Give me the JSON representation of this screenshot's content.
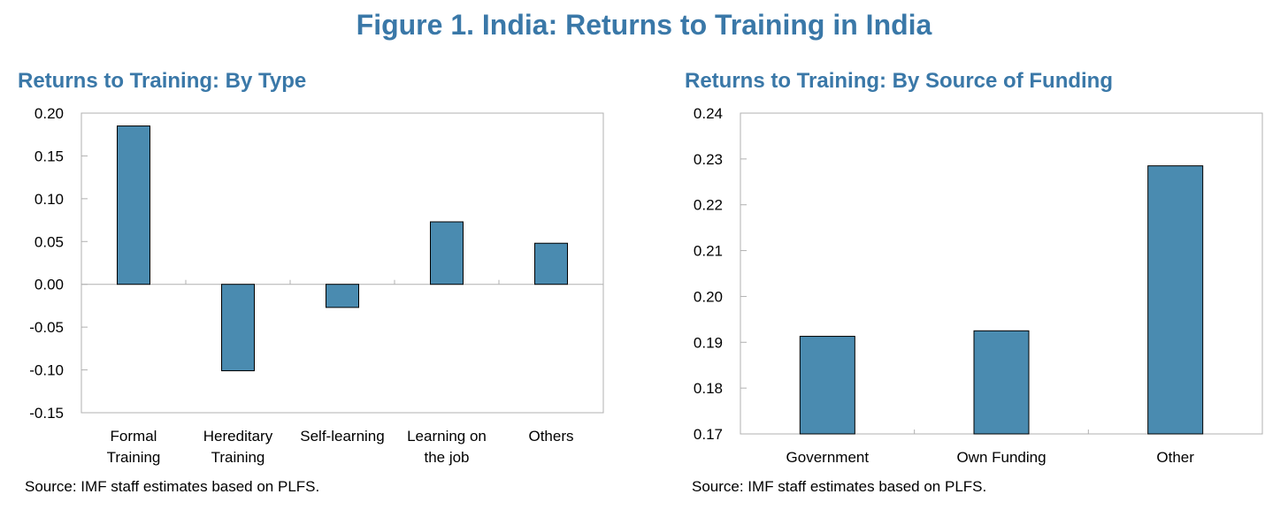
{
  "figure": {
    "title": "Figure 1. India: Returns to Training in India"
  },
  "chart_data": [
    {
      "type": "bar",
      "title": "Returns to Training: By Type",
      "categories": [
        [
          "Formal",
          "Training"
        ],
        [
          "Hereditary",
          "Training"
        ],
        [
          "Self-learning"
        ],
        [
          "Learning on",
          "the job"
        ],
        [
          "Others"
        ]
      ],
      "values": [
        0.185,
        -0.101,
        -0.027,
        0.073,
        0.048
      ],
      "ylim": [
        -0.15,
        0.2
      ],
      "yticks": [
        "0.20",
        "0.15",
        "0.10",
        "0.05",
        "0.00",
        "-0.05",
        "-0.10",
        "-0.15"
      ],
      "ytick_values": [
        0.2,
        0.15,
        0.1,
        0.05,
        0.0,
        -0.05,
        -0.1,
        -0.15
      ],
      "bar_color": "#4a8bb0",
      "source": "Source: IMF staff estimates based on PLFS."
    },
    {
      "type": "bar",
      "title": "Returns to Training: By Source of Funding",
      "categories": [
        [
          "Government"
        ],
        [
          "Own Funding"
        ],
        [
          "Other"
        ]
      ],
      "values": [
        0.1913,
        0.1925,
        0.2285
      ],
      "ylim": [
        0.17,
        0.24
      ],
      "yticks": [
        "0.24",
        "0.23",
        "0.22",
        "0.21",
        "0.20",
        "0.19",
        "0.18",
        "0.17"
      ],
      "ytick_values": [
        0.24,
        0.23,
        0.22,
        0.21,
        0.2,
        0.19,
        0.18,
        0.17
      ],
      "bar_color": "#4a8bb0",
      "source": "Source: IMF staff estimates based on PLFS."
    }
  ]
}
